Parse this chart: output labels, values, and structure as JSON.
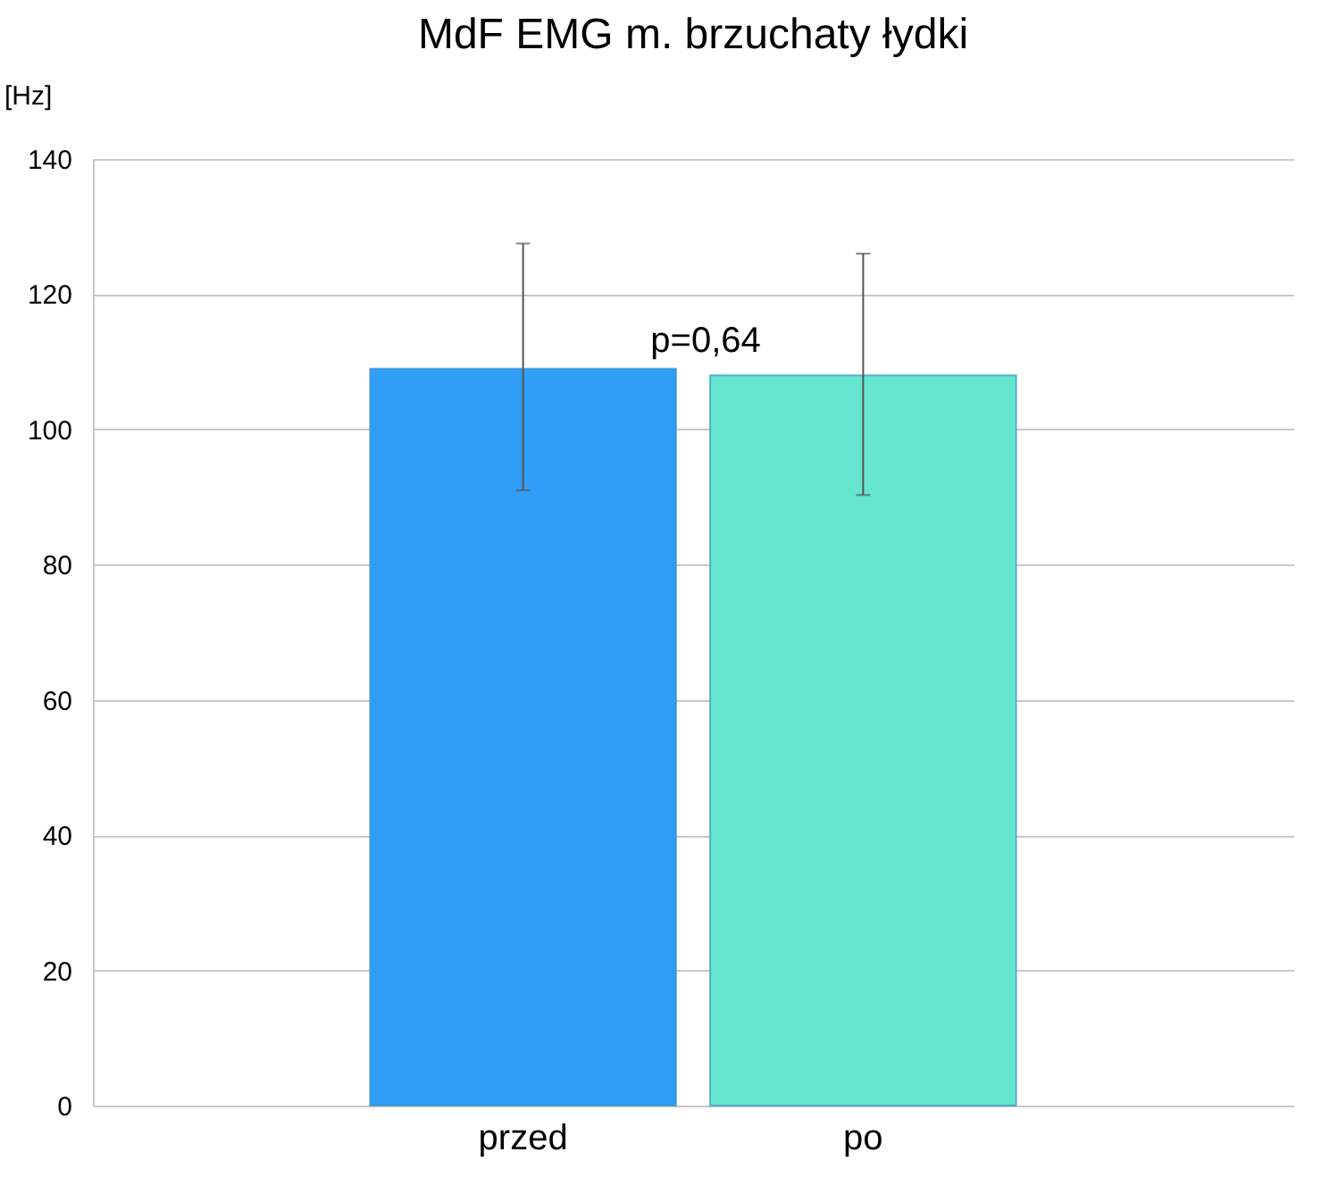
{
  "chart_data": {
    "type": "bar",
    "title": "MdF EMG m. brzuchaty łydki",
    "ylabel": "[Hz]",
    "categories": [
      "przed",
      "po"
    ],
    "series": [
      {
        "colors": [
          "#309ef8",
          "#66e5cf"
        ],
        "values": [
          109,
          108
        ],
        "errors": [
          [
            91,
            127.5
          ],
          [
            90.3,
            126
          ]
        ]
      }
    ],
    "ylim": [
      0,
      140
    ],
    "yticks": [
      0,
      20,
      40,
      60,
      80,
      100,
      120,
      140
    ],
    "grid": "y",
    "annotations": [
      "p=0,64"
    ]
  }
}
